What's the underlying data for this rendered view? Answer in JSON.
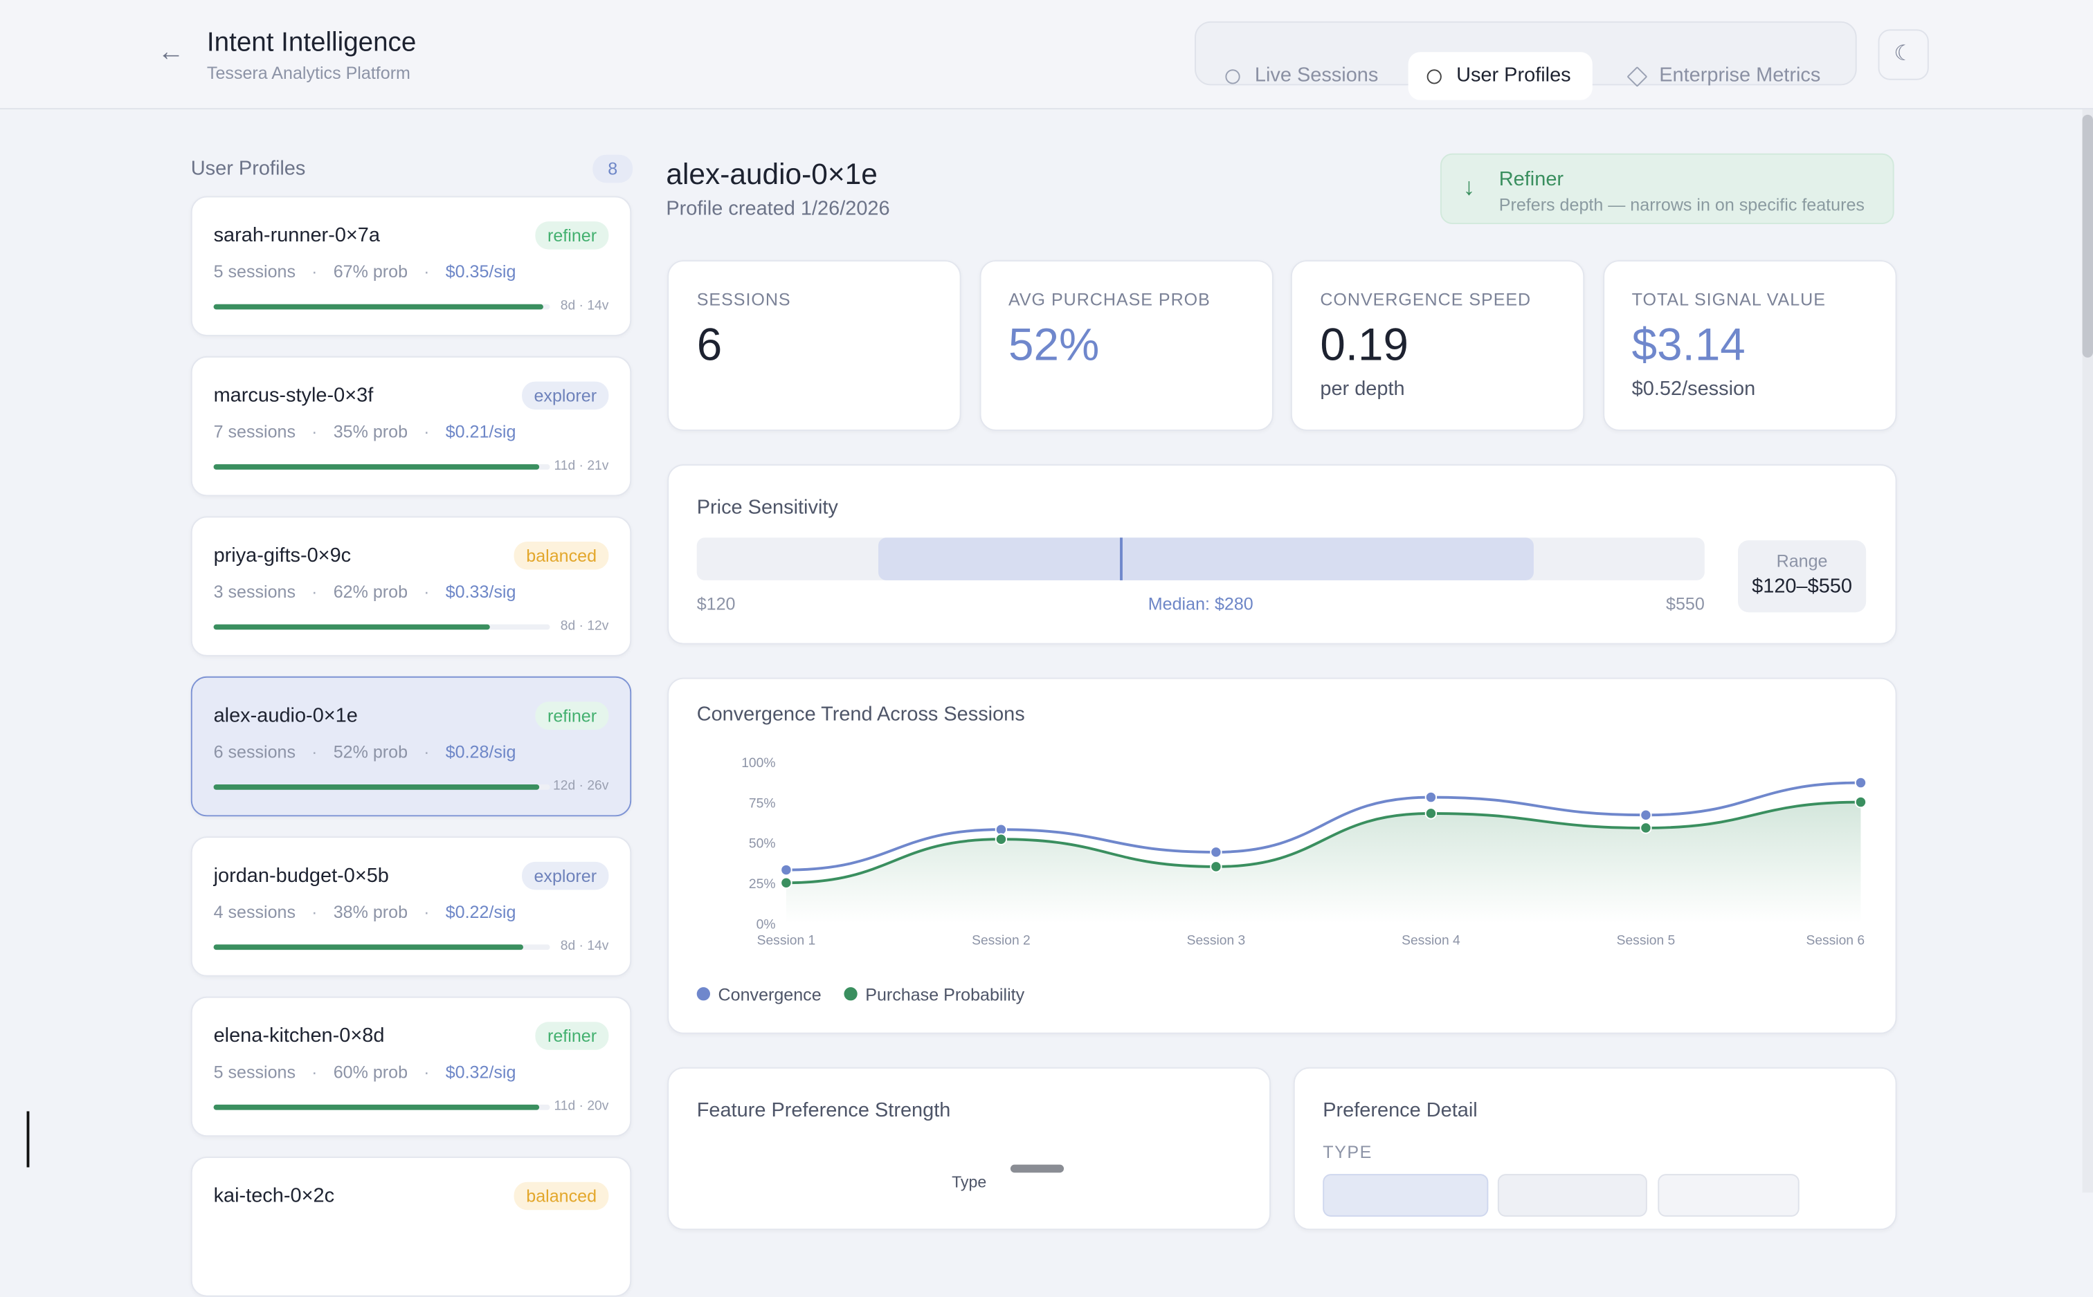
{
  "header": {
    "title": "Intent Intelligence",
    "subtitle": "Tessera Analytics Platform",
    "tabs": [
      "Live Sessions",
      "User Profiles",
      "Enterprise Metrics"
    ]
  },
  "sidebar": {
    "title": "User Profiles",
    "count": 8,
    "profiles": [
      {
        "name": "sarah-runner-0×7a",
        "tag": "refiner",
        "sessions": "5 sessions",
        "prob": "67% prob",
        "signal": "$0.35/sig",
        "meta": "8d · 14v",
        "bar": 98
      },
      {
        "name": "marcus-style-0×3f",
        "tag": "explorer",
        "sessions": "7 sessions",
        "prob": "35% prob",
        "signal": "$0.21/sig",
        "meta": "11d · 21v",
        "bar": 97
      },
      {
        "name": "priya-gifts-0×9c",
        "tag": "balanced",
        "sessions": "3 sessions",
        "prob": "62% prob",
        "signal": "$0.33/sig",
        "meta": "8d · 12v",
        "bar": 82
      },
      {
        "name": "alex-audio-0×1e",
        "tag": "refiner",
        "sessions": "6 sessions",
        "prob": "52% prob",
        "signal": "$0.28/sig",
        "meta": "12d · 26v",
        "bar": 97
      },
      {
        "name": "jordan-budget-0×5b",
        "tag": "explorer",
        "sessions": "4 sessions",
        "prob": "38% prob",
        "signal": "$0.22/sig",
        "meta": "8d · 14v",
        "bar": 92
      },
      {
        "name": "elena-kitchen-0×8d",
        "tag": "refiner",
        "sessions": "5 sessions",
        "prob": "60% prob",
        "signal": "$0.32/sig",
        "meta": "11d · 20v",
        "bar": 97
      },
      {
        "name": "kai-tech-0×2c",
        "tag": "balanced"
      }
    ]
  },
  "profile": {
    "title": "alex-audio-0×1e",
    "created": "Profile created 1/26/2026",
    "badge": {
      "title": "Refiner",
      "text": "Prefers depth — narrows in on specific features"
    }
  },
  "stats": [
    {
      "label": "SESSIONS",
      "value": "6"
    },
    {
      "label": "AVG PURCHASE PROB",
      "value": "52%"
    },
    {
      "label": "CONVERGENCE SPEED",
      "value": "0.19",
      "sub": "per depth"
    },
    {
      "label": "TOTAL SIGNAL VALUE",
      "value": "$3.14",
      "sub": "$0.52/session"
    }
  ],
  "price": {
    "title": "Price Sensitivity",
    "min": "$120",
    "median": "Median: $280",
    "max": "$550",
    "range_label": "Range",
    "range": "$120–$550",
    "band": [
      18,
      83
    ],
    "marker": 42
  },
  "chart": {
    "type": "line",
    "title": "Convergence Trend Across Sessions",
    "categories": [
      "Session 1",
      "Session 2",
      "Session 3",
      "Session 4",
      "Session 5",
      "Session 6"
    ],
    "ylim": [
      0,
      100
    ],
    "yticks": [
      {
        "value": 0,
        "label": "0%"
      },
      {
        "value": 25,
        "label": "25%"
      },
      {
        "value": 50,
        "label": "50%"
      },
      {
        "value": 75,
        "label": "75%"
      },
      {
        "value": 100,
        "label": "100%"
      }
    ],
    "series": [
      {
        "name": "Convergence",
        "color": "#6f87cc",
        "values": [
          33,
          58,
          44,
          78,
          67,
          87
        ]
      },
      {
        "name": "Purchase Probability",
        "color": "#3a8f5f",
        "values": [
          25,
          52,
          35,
          68,
          59,
          75
        ]
      }
    ]
  },
  "features": {
    "title": "Feature Preference Strength",
    "axis": "Type"
  },
  "detail": {
    "title": "Preference Detail",
    "section": "TYPE"
  }
}
